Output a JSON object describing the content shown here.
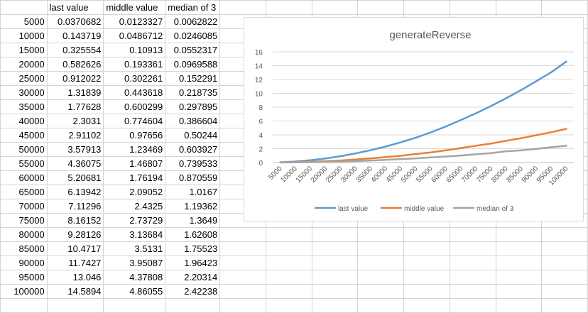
{
  "sheet": {
    "headers": [
      "last value",
      "middle value",
      "median of 3"
    ],
    "rows": [
      [
        "5000",
        "0.0370682",
        "0.0123327",
        "0.0062822"
      ],
      [
        "10000",
        "0.143719",
        "0.0486712",
        "0.0246085"
      ],
      [
        "15000",
        "0.325554",
        "0.10913",
        "0.0552317"
      ],
      [
        "20000",
        "0.582626",
        "0.193361",
        "0.0969588"
      ],
      [
        "25000",
        "0.912022",
        "0.302261",
        "0.152291"
      ],
      [
        "30000",
        "1.31839",
        "0.443618",
        "0.218735"
      ],
      [
        "35000",
        "1.77628",
        "0.600299",
        "0.297895"
      ],
      [
        "40000",
        "2.3031",
        "0.774604",
        "0.386604"
      ],
      [
        "45000",
        "2.91102",
        "0.97656",
        "0.50244"
      ],
      [
        "50000",
        "3.57913",
        "1.23469",
        "0.603927"
      ],
      [
        "55000",
        "4.36075",
        "1.46807",
        "0.739533"
      ],
      [
        "60000",
        "5.20681",
        "1.76194",
        "0.870559"
      ],
      [
        "65000",
        "6.13942",
        "2.09052",
        "1.0167"
      ],
      [
        "70000",
        "7.11296",
        "2.4325",
        "1.19362"
      ],
      [
        "75000",
        "8.16152",
        "2.73729",
        "1.3649"
      ],
      [
        "80000",
        "9.28126",
        "3.13684",
        "1.62608"
      ],
      [
        "85000",
        "10.4717",
        "3.5131",
        "1.75523"
      ],
      [
        "90000",
        "11.7427",
        "3.95087",
        "1.96423"
      ],
      [
        "95000",
        "13.046",
        "4.37808",
        "2.20314"
      ],
      [
        "100000",
        "14.5894",
        "4.86055",
        "2.42238"
      ]
    ]
  },
  "chart_data": {
    "type": "line",
    "title": "generateReverse",
    "xlabel": "",
    "ylabel": "",
    "categories": [
      "5000",
      "10000",
      "15000",
      "20000",
      "25000",
      "30000",
      "35000",
      "40000",
      "45000",
      "50000",
      "55000",
      "60000",
      "65000",
      "70000",
      "75000",
      "80000",
      "85000",
      "90000",
      "95000",
      "100000"
    ],
    "ylim": [
      0,
      16
    ],
    "yticks": [
      0,
      2,
      4,
      6,
      8,
      10,
      12,
      14,
      16
    ],
    "grid": true,
    "legend_position": "bottom",
    "series": [
      {
        "name": "last value",
        "color": "#5b9bd5",
        "values": [
          0.0370682,
          0.143719,
          0.325554,
          0.582626,
          0.912022,
          1.31839,
          1.77628,
          2.3031,
          2.91102,
          3.57913,
          4.36075,
          5.20681,
          6.13942,
          7.11296,
          8.16152,
          9.28126,
          10.4717,
          11.7427,
          13.046,
          14.5894
        ]
      },
      {
        "name": "middle value",
        "color": "#ed7d31",
        "values": [
          0.0123327,
          0.0486712,
          0.10913,
          0.193361,
          0.302261,
          0.443618,
          0.600299,
          0.774604,
          0.97656,
          1.23469,
          1.46807,
          1.76194,
          2.09052,
          2.4325,
          2.73729,
          3.13684,
          3.5131,
          3.95087,
          4.37808,
          4.86055
        ]
      },
      {
        "name": "median of 3",
        "color": "#a5a5a5",
        "values": [
          0.0062822,
          0.0246085,
          0.0552317,
          0.0969588,
          0.152291,
          0.218735,
          0.297895,
          0.386604,
          0.50244,
          0.603927,
          0.739533,
          0.870559,
          1.0167,
          1.19362,
          1.3649,
          1.62608,
          1.75523,
          1.96423,
          2.20314,
          2.42238
        ]
      }
    ]
  }
}
